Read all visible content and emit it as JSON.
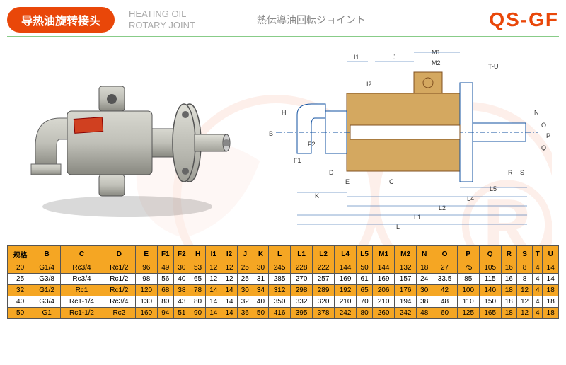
{
  "header": {
    "badge": "导热油旋转接头",
    "title_en_1": "HEATING OIL",
    "title_en_2": "ROTARY JOINT",
    "title_jp": "熱伝導油回転ジョイント",
    "model": "QS-GF"
  },
  "diagram_labels": [
    "I1",
    "J",
    "M1",
    "M2",
    "T-U",
    "I2",
    "H",
    "B",
    "F1",
    "F2",
    "D",
    "E",
    "N",
    "O",
    "P",
    "Q",
    "K",
    "C",
    "R",
    "S",
    "L5",
    "L4",
    "L2",
    "L1",
    "L"
  ],
  "table": {
    "headers": [
      "规格",
      "B",
      "C",
      "D",
      "E",
      "F1",
      "F2",
      "H",
      "I1",
      "I2",
      "J",
      "K",
      "L",
      "L1",
      "L2",
      "L4",
      "L5",
      "M1",
      "M2",
      "N",
      "O",
      "P",
      "Q",
      "R",
      "S",
      "T",
      "U"
    ],
    "rows": [
      {
        "shaded": true,
        "cells": [
          "20",
          "G1/4",
          "Rc3/4",
          "Rc1/2",
          "96",
          "49",
          "30",
          "53",
          "12",
          "12",
          "25",
          "30",
          "245",
          "228",
          "222",
          "144",
          "50",
          "144",
          "132",
          "18",
          "27",
          "75",
          "105",
          "16",
          "8",
          "4",
          "14"
        ]
      },
      {
        "shaded": false,
        "cells": [
          "25",
          "G3/8",
          "Rc3/4",
          "Rc1/2",
          "98",
          "56",
          "40",
          "65",
          "12",
          "12",
          "25",
          "31",
          "285",
          "270",
          "257",
          "169",
          "61",
          "169",
          "157",
          "24",
          "33.5",
          "85",
          "115",
          "16",
          "8",
          "4",
          "14"
        ]
      },
      {
        "shaded": true,
        "cells": [
          "32",
          "G1/2",
          "Rc1",
          "Rc1/2",
          "120",
          "68",
          "38",
          "78",
          "14",
          "14",
          "30",
          "34",
          "312",
          "298",
          "289",
          "192",
          "65",
          "206",
          "176",
          "30",
          "42",
          "100",
          "140",
          "18",
          "12",
          "4",
          "18"
        ]
      },
      {
        "shaded": false,
        "cells": [
          "40",
          "G3/4",
          "Rc1-1/4",
          "Rc3/4",
          "130",
          "80",
          "43",
          "80",
          "14",
          "14",
          "32",
          "40",
          "350",
          "332",
          "320",
          "210",
          "70",
          "210",
          "194",
          "38",
          "48",
          "110",
          "150",
          "18",
          "12",
          "4",
          "18"
        ]
      },
      {
        "shaded": true,
        "cells": [
          "50",
          "G1",
          "Rc1-1/2",
          "Rc2",
          "160",
          "94",
          "51",
          "90",
          "14",
          "14",
          "36",
          "50",
          "416",
          "395",
          "378",
          "242",
          "80",
          "260",
          "242",
          "48",
          "60",
          "125",
          "165",
          "18",
          "12",
          "4",
          "18"
        ]
      }
    ]
  },
  "colors": {
    "brand": "#e94709",
    "header_bg": "#f5a623",
    "joint_body": "#b8b8b0",
    "joint_shadow": "#888880",
    "flange": "#d0d0c8",
    "diagram_body": "#d4a860",
    "diagram_line": "#1050a0"
  }
}
